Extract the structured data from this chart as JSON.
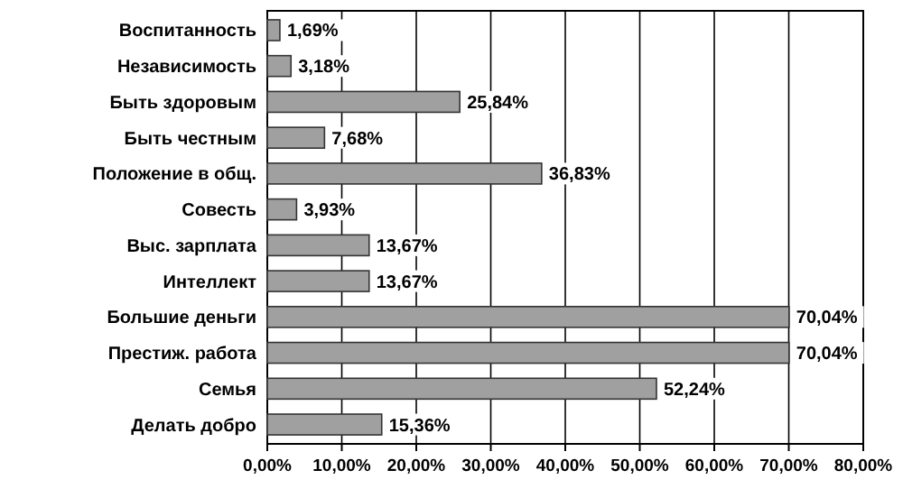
{
  "chart_data": {
    "type": "bar",
    "orientation": "horizontal",
    "categories": [
      "Воспитанность",
      "Независимость",
      "Быть здоровым",
      "Быть честным",
      "Положение в общ.",
      "Совесть",
      "Выс. зарплата",
      "Интеллект",
      "Большие деньги",
      "Престиж. работа",
      "Семья",
      "Делать добро"
    ],
    "values": [
      1.69,
      3.18,
      25.84,
      7.68,
      36.83,
      3.93,
      13.67,
      13.67,
      70.04,
      70.04,
      52.24,
      15.36
    ],
    "value_labels": [
      "1,69%",
      "3,18%",
      "25,84%",
      "7,68%",
      "36,83%",
      "3,93%",
      "13,67%",
      "13,67%",
      "70,04%",
      "70,04%",
      "52,24%",
      "15,36%"
    ],
    "color": "#a0a0a0",
    "xlim": [
      0,
      80
    ],
    "xticks": [
      {
        "value": 0,
        "label": "0,00%"
      },
      {
        "value": 10,
        "label": "10,00%"
      },
      {
        "value": 20,
        "label": "20,00%"
      },
      {
        "value": 30,
        "label": "30,00%"
      },
      {
        "value": 40,
        "label": "40,00%"
      },
      {
        "value": 50,
        "label": "50,00%"
      },
      {
        "value": 60,
        "label": "60,00%"
      },
      {
        "value": 70,
        "label": "70,00%"
      },
      {
        "value": 80,
        "label": "80,00%"
      }
    ],
    "grid": "x"
  }
}
